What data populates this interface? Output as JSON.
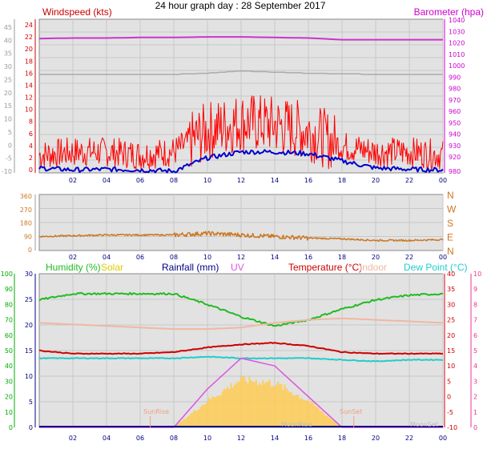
{
  "title": "24 hour graph day : 28 September 2017",
  "colors": {
    "windspeed": "#ff0000",
    "windavg": "#0000cc",
    "barometer": "#dd00dd",
    "baro_line": "#cc33cc",
    "gust_line": "#aaaaaa",
    "direction": "#cc7722",
    "humidity": "#22bb22",
    "solar": "#ddcc00",
    "solar_fill": "#ffcc55",
    "rainfall": "#000088",
    "uv": "#dd55dd",
    "temperature": "#cc0000",
    "indoor": "#f0b8a0",
    "dewpoint": "#22cccc",
    "axis_red": "#cc0000",
    "axis_mag": "#cc00cc",
    "axis_green": "#00aa00",
    "axis_pink": "#ee3388",
    "tick_blue": "#000080"
  },
  "x_ticks": [
    "02",
    "04",
    "06",
    "08",
    "10",
    "12",
    "14",
    "16",
    "18",
    "20",
    "22",
    "00"
  ],
  "panel1": {
    "left_label": "Windspeed (kts)",
    "right_label": "Barometer (hpa)",
    "left_grey_ticks": [
      "45",
      "40",
      "35",
      "30",
      "25",
      "20",
      "15",
      "10",
      "5",
      "0",
      "-5",
      "-10"
    ],
    "left_red_ticks": [
      "24",
      "22",
      "20",
      "18",
      "16",
      "14",
      "12",
      "10",
      "8",
      "6",
      "4",
      "2",
      "0"
    ],
    "right_ticks": [
      "1040",
      "1030",
      "1020",
      "1010",
      "1000",
      "990",
      "980",
      "970",
      "960",
      "950",
      "940",
      "930",
      "920"
    ],
    "right_bottom_tick": "980"
  },
  "panel2": {
    "left_ticks": [
      "360",
      "270",
      "180",
      "90",
      "0"
    ],
    "right_labels": [
      "N",
      "W",
      "S",
      "E",
      "N"
    ]
  },
  "panel3": {
    "legend": {
      "humidity": "Humidity (%)",
      "solar": "Solar",
      "rainfall": "Rainfall (mm)",
      "uv": "UV",
      "temperature": "Temperature (°C)",
      "indoor": "Indoor",
      "dewpoint": "Dew Point (°C)"
    },
    "green_ticks": [
      "100",
      "90",
      "80",
      "70",
      "60",
      "50",
      "40",
      "30",
      "20",
      "10",
      "0"
    ],
    "navy_ticks": [
      "30",
      "25",
      "20",
      "15",
      "10",
      "5",
      "0"
    ],
    "red_ticks": [
      "40",
      "35",
      "30",
      "25",
      "20",
      "15",
      "10",
      "5",
      "0",
      "-5",
      "-10"
    ],
    "pink_ticks": [
      "10",
      "9",
      "8",
      "7",
      "6",
      "5",
      "4",
      "3",
      "2",
      "1",
      "0"
    ],
    "annotations": {
      "sunrise": "SunRise",
      "sunset": "SunSet",
      "moonrise": "MoonRise",
      "moonset": "MoonSet"
    }
  },
  "chart_data": [
    {
      "type": "line",
      "title": "24 hour graph day : 28 September 2017",
      "xlabel": "",
      "x": [
        "00",
        "02",
        "04",
        "06",
        "08",
        "10",
        "12",
        "14",
        "16",
        "18",
        "20",
        "22",
        "00"
      ],
      "ylim_windspeed": [
        0,
        24
      ],
      "ylim_barometer": [
        920,
        1040
      ],
      "series": [
        {
          "name": "Windspeed (kts)",
          "unit": "kts",
          "values": [
            3,
            3.5,
            3.5,
            3,
            3.5,
            7,
            8.5,
            8,
            7,
            4.5,
            3.5,
            3.5,
            3
          ]
        },
        {
          "name": "Windspeed (kts) average",
          "unit": "kts",
          "values": [
            0.8,
            0.5,
            0.6,
            0.5,
            0.3,
            2.5,
            3.5,
            3.5,
            3.2,
            2,
            0.8,
            0.6,
            0.5
          ]
        },
        {
          "name": "Barometer (hpa)",
          "unit": "hpa",
          "values": [
            1032,
            1032.5,
            1032.5,
            1033,
            1033,
            1033.5,
            1033.5,
            1033,
            1032.5,
            1031,
            1031,
            1031,
            1031
          ]
        },
        {
          "name": "Barometer grey",
          "unit": "hpa",
          "values": [
            1000,
            1000,
            1000,
            1000,
            1000,
            1001,
            1003,
            1002,
            1001,
            1000.5,
            1000,
            1000,
            1000
          ]
        }
      ]
    },
    {
      "type": "line",
      "xlabel": "",
      "x": [
        "00",
        "02",
        "04",
        "06",
        "08",
        "10",
        "12",
        "14",
        "16",
        "18",
        "20",
        "22",
        "00"
      ],
      "ylim": [
        0,
        360
      ],
      "series": [
        {
          "name": "Direction",
          "unit": "deg",
          "values": [
            90,
            95,
            100,
            100,
            100,
            110,
            100,
            90,
            80,
            75,
            65,
            65,
            70
          ]
        }
      ]
    },
    {
      "type": "line",
      "xlabel": "",
      "x": [
        "00",
        "02",
        "04",
        "06",
        "08",
        "10",
        "12",
        "14",
        "16",
        "18",
        "20",
        "22",
        "00"
      ],
      "series": [
        {
          "name": "Humidity (%)",
          "unit": "%",
          "values": [
            83,
            87,
            87,
            87,
            87,
            80,
            72,
            66,
            70,
            77,
            83,
            86,
            87
          ]
        },
        {
          "name": "Temperature (°C)",
          "unit": "°C",
          "values": [
            15,
            14,
            14,
            14,
            14.5,
            16,
            17,
            17.5,
            16.5,
            14.5,
            14,
            14,
            14
          ]
        },
        {
          "name": "Indoor",
          "unit": "°C",
          "values": [
            24,
            23.5,
            23,
            22.5,
            22,
            22,
            22.5,
            24,
            25,
            25.5,
            25,
            24.5,
            24
          ]
        },
        {
          "name": "Dew Point (°C)",
          "unit": "°C",
          "values": [
            12.5,
            12.5,
            12.5,
            12.5,
            12.5,
            13,
            12.5,
            12.5,
            12.5,
            12,
            11.5,
            12,
            12
          ]
        },
        {
          "name": "Solar",
          "unit": "W/m2",
          "values": [
            0,
            0,
            0,
            0,
            0,
            55,
            100,
            92,
            55,
            0,
            0,
            0,
            0
          ]
        },
        {
          "name": "UV",
          "unit": "",
          "values": [
            0,
            0,
            0,
            0,
            0,
            2.5,
            4.5,
            4,
            2,
            0,
            0,
            0,
            0
          ]
        },
        {
          "name": "Rainfall (mm)",
          "unit": "mm",
          "values": [
            0,
            0,
            0,
            0,
            0,
            0,
            0,
            0,
            0,
            0,
            0,
            0,
            0
          ]
        }
      ]
    }
  ]
}
